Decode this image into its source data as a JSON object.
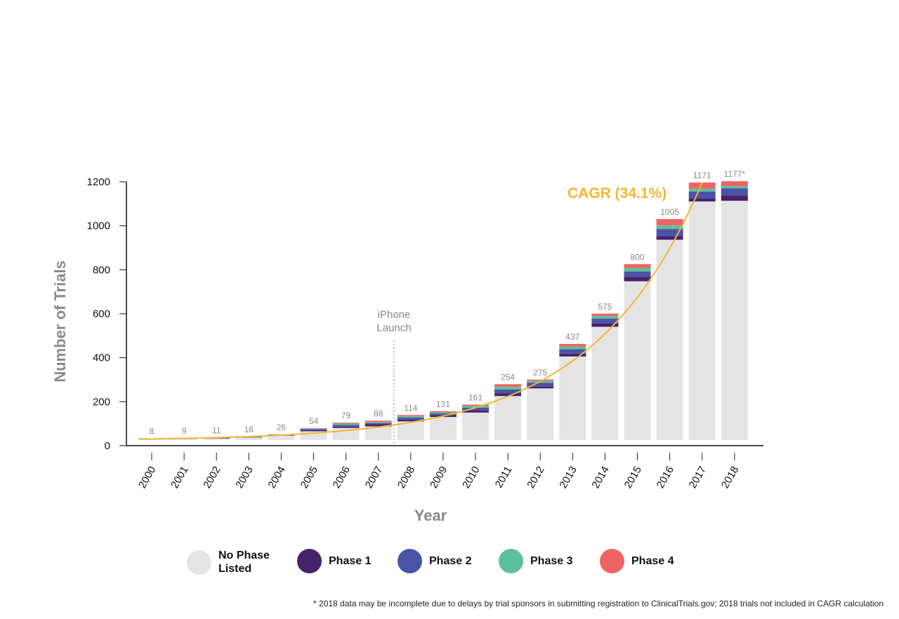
{
  "chart_data": {
    "type": "bar",
    "stacked": true,
    "xlabel": "Year",
    "ylabel": "Number of Trials",
    "ylim": [
      0,
      1200
    ],
    "yticks": [
      0,
      200,
      400,
      600,
      800,
      1000,
      1200
    ],
    "categories": [
      "2000",
      "2001",
      "2002",
      "2003",
      "2004",
      "2005",
      "2006",
      "2007",
      "2008",
      "2009",
      "2010",
      "2011",
      "2012",
      "2013",
      "2014",
      "2015",
      "2016",
      "2017",
      "2018"
    ],
    "totals_labels": [
      "8",
      "9",
      "11",
      "16",
      "26",
      "54",
      "79",
      "88",
      "114",
      "131",
      "161",
      "254",
      "275",
      "437",
      "575",
      "800",
      "1005",
      "1171",
      "1177*"
    ],
    "totals": [
      8,
      9,
      11,
      16,
      26,
      54,
      79,
      88,
      114,
      131,
      161,
      254,
      275,
      437,
      575,
      800,
      1005,
      1171,
      1177
    ],
    "series": [
      {
        "name": "No Phase Listed",
        "color": "#e4e4e4",
        "values": [
          5,
          6,
          7,
          11,
          20,
          40,
          55,
          62,
          85,
          105,
          125,
          200,
          235,
          380,
          515,
          722,
          911,
          1085,
          1088
        ]
      },
      {
        "name": "Phase 1",
        "color": "#45226a",
        "values": [
          0,
          1,
          3,
          1,
          3,
          5,
          6,
          10,
          8,
          8,
          10,
          12,
          8,
          13,
          15,
          21,
          17,
          13,
          25
        ]
      },
      {
        "name": "Phase 2",
        "color": "#4a54a6",
        "values": [
          2,
          1,
          1,
          2,
          2,
          5,
          8,
          5,
          10,
          8,
          12,
          18,
          18,
          20,
          22,
          23,
          32,
          32,
          32
        ]
      },
      {
        "name": "Phase 3",
        "color": "#5cc19a",
        "values": [
          1,
          1,
          0,
          2,
          1,
          2,
          6,
          4,
          6,
          5,
          8,
          12,
          8,
          12,
          12,
          16,
          16,
          13,
          10
        ]
      },
      {
        "name": "Phase 4",
        "color": "#ee6464",
        "values": [
          0,
          0,
          0,
          0,
          0,
          2,
          4,
          7,
          5,
          5,
          6,
          12,
          6,
          12,
          11,
          18,
          29,
          28,
          22
        ]
      }
    ],
    "trendline": {
      "label": "CAGR (34.1%)",
      "growth_rate": 0.341,
      "start_year": 2000,
      "start_value": 8,
      "end_year": 2017,
      "color": "#f2b634"
    },
    "annotation": {
      "text_line1": "iPhone",
      "text_line2": "Launch",
      "between": [
        "2007",
        "2008"
      ]
    },
    "legend_placement": "bottom",
    "grid": false
  },
  "legend": [
    {
      "line1": "No Phase",
      "line2": "Listed",
      "color": "#e4e4e4"
    },
    {
      "line1": "Phase 1",
      "line2": "",
      "color": "#45226a"
    },
    {
      "line1": "Phase 2",
      "line2": "",
      "color": "#4a54a6"
    },
    {
      "line1": "Phase 3",
      "line2": "",
      "color": "#5cc19a"
    },
    {
      "line1": "Phase 4",
      "line2": "",
      "color": "#ee6464"
    }
  ],
  "footnote": "* 2018 data may be incomplete due to delays by trial sponsors in submitting registration to ClinicalTrials.gov; 2018 trials not included in CAGR calculation"
}
